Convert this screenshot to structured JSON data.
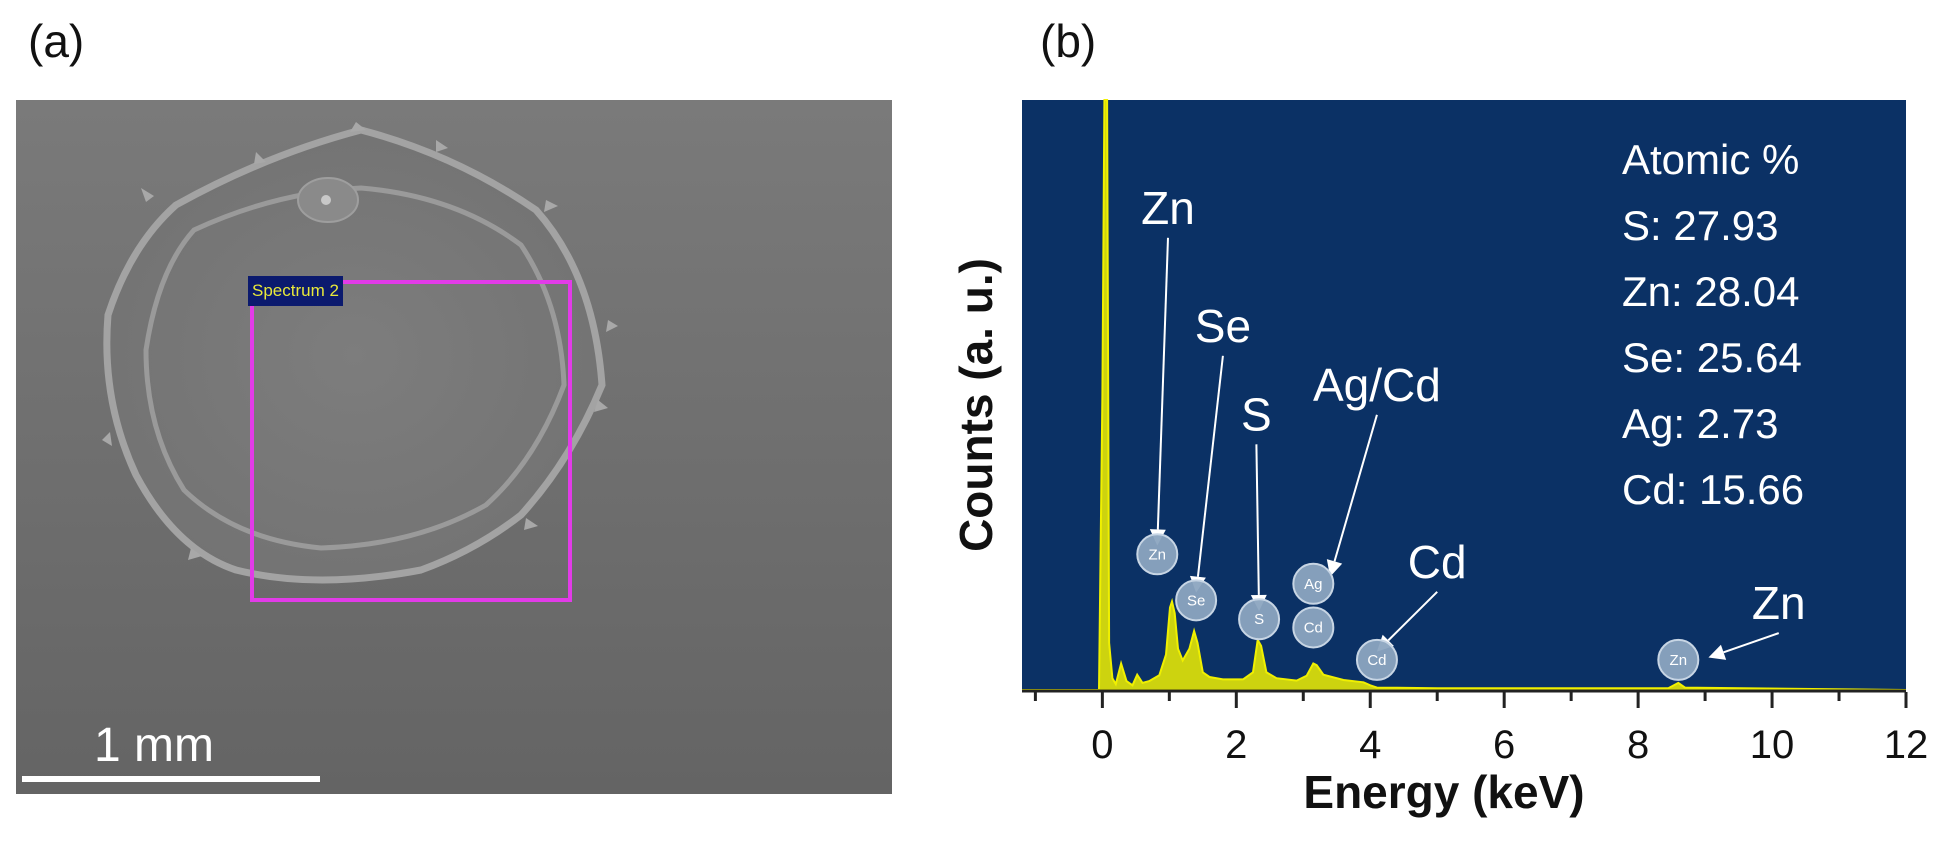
{
  "panels": {
    "a": {
      "label": "(a)"
    },
    "b": {
      "label": "(b)"
    }
  },
  "sem": {
    "roi_label": "Spectrum 2",
    "scale_text": "1 mm",
    "roi_color": "#e23be8"
  },
  "chart_data": {
    "type": "line",
    "title": "",
    "xlabel": "Energy (keV)",
    "ylabel": "Counts (a. u.)",
    "xlim": [
      -1.2,
      12
    ],
    "ylim": [
      0,
      100
    ],
    "xticks": [
      0,
      2,
      4,
      6,
      8,
      10,
      12
    ],
    "tick_labels": [
      "0",
      "2",
      "4",
      "6",
      "8",
      "10",
      "12"
    ],
    "grid": false,
    "plot_background": "#0b3165",
    "spectrum_color": "#f0f000",
    "series": [
      {
        "values": [
          [
            -1.2,
            0
          ],
          [
            -0.05,
            0
          ],
          [
            0,
            50
          ],
          [
            0.03,
            100
          ],
          [
            0.07,
            100
          ],
          [
            0.1,
            8
          ],
          [
            0.15,
            2
          ],
          [
            0.2,
            1
          ],
          [
            0.28,
            4.5
          ],
          [
            0.36,
            1.5
          ],
          [
            0.45,
            0.8
          ],
          [
            0.52,
            2.6
          ],
          [
            0.6,
            1.2
          ],
          [
            0.7,
            1.5
          ],
          [
            0.85,
            2.5
          ],
          [
            0.95,
            6
          ],
          [
            1.01,
            14
          ],
          [
            1.04,
            15
          ],
          [
            1.08,
            13
          ],
          [
            1.13,
            7
          ],
          [
            1.2,
            5
          ],
          [
            1.3,
            7
          ],
          [
            1.37,
            10
          ],
          [
            1.42,
            8
          ],
          [
            1.5,
            3
          ],
          [
            1.6,
            2.2
          ],
          [
            1.8,
            1.8
          ],
          [
            2.1,
            1.8
          ],
          [
            2.25,
            3
          ],
          [
            2.32,
            8.5
          ],
          [
            2.37,
            7.5
          ],
          [
            2.45,
            3
          ],
          [
            2.6,
            2
          ],
          [
            2.9,
            1.6
          ],
          [
            3.05,
            2.4
          ],
          [
            3.15,
            4.5
          ],
          [
            3.2,
            4.2
          ],
          [
            3.3,
            2.6
          ],
          [
            3.6,
            1.7
          ],
          [
            3.9,
            1.3
          ],
          [
            4.0,
            0.8
          ],
          [
            4.1,
            0.4
          ],
          [
            5.0,
            0.3
          ],
          [
            8.45,
            0.3
          ],
          [
            8.6,
            1.2
          ],
          [
            8.7,
            0.4
          ],
          [
            12,
            0
          ]
        ]
      }
    ],
    "peak_labels": [
      {
        "text": "Zn",
        "label_x": 0.98,
        "label_y": 78,
        "marker_x": 0.82,
        "marker_y": 24.5
      },
      {
        "text": "Se",
        "label_x": 1.8,
        "label_y": 58,
        "marker_x": 1.4,
        "marker_y": 16.5
      },
      {
        "text": "S",
        "label_x": 2.3,
        "label_y": 43,
        "marker_x": 2.34,
        "marker_y": 13.4
      },
      {
        "text": "Ag/Cd",
        "label_x": 4.1,
        "label_y": 48,
        "marker_x": 3.4,
        "marker_y": 19.2
      },
      {
        "text": "Cd",
        "label_x": 5.0,
        "label_y": 18,
        "marker_x": 4.1,
        "marker_y": 6.5
      },
      {
        "text": "Zn",
        "label_x": 10.1,
        "label_y": 11,
        "marker_x": 9.05,
        "marker_y": 5.5
      }
    ],
    "element_markers": [
      {
        "symbol": "Zn",
        "x": 0.82,
        "y": 23.0
      },
      {
        "symbol": "Se",
        "x": 1.4,
        "y": 15.2
      },
      {
        "symbol": "S",
        "x": 2.34,
        "y": 12.0
      },
      {
        "symbol": "Ag",
        "x": 3.15,
        "y": 18.0
      },
      {
        "symbol": "Cd",
        "x": 3.15,
        "y": 10.6
      },
      {
        "symbol": "Cd",
        "x": 4.1,
        "y": 5.1
      },
      {
        "symbol": "Zn",
        "x": 8.6,
        "y": 5.1
      }
    ],
    "composition": {
      "title": "Atomic  %",
      "entries": [
        "S: 27.93",
        "Zn: 28.04",
        "Se: 25.64",
        "Ag: 2.73",
        "Cd: 15.66"
      ]
    }
  }
}
